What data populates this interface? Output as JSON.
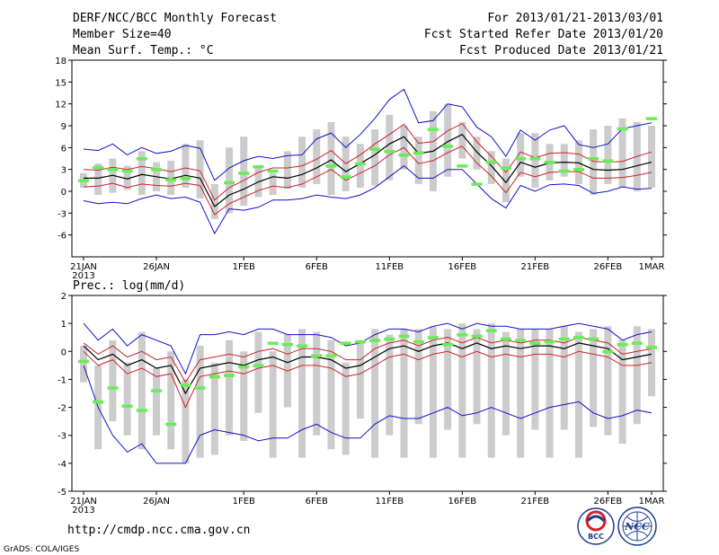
{
  "header": {
    "left": [
      "DERF/NCC/BCC Monthly Forecast",
      "Member Size=40",
      "Mean Surf. Temp.: °C"
    ],
    "right": [
      "For 2013/01/21-2013/03/01",
      "Fcst Started Refer Date 2013/01/20",
      "Fcst Produced Date 2013/01/21"
    ]
  },
  "precip_title": "Prec.: log(mm/d)",
  "footer": {
    "url": "http://cmdp.ncc.cma.gov.cn",
    "credit": "GrADS: COLA/IGES"
  },
  "logos": {
    "bcc": "BCC",
    "ncc": "NCC"
  },
  "colors": {
    "box": "#cccccc",
    "mean": "#000000",
    "band": "#d0202a",
    "range": "#1010cc",
    "obs": "#66ee55"
  },
  "x_labels": [
    {
      "day": 1,
      "label": "21JAN",
      "sub": "2013"
    },
    {
      "day": 6,
      "label": "26JAN"
    },
    {
      "day": 12,
      "label": "1FEB"
    },
    {
      "day": 17,
      "label": "6FEB"
    },
    {
      "day": 22,
      "label": "11FEB"
    },
    {
      "day": 27,
      "label": "16FEB"
    },
    {
      "day": 32,
      "label": "21FEB"
    },
    {
      "day": 37,
      "label": "26FEB"
    },
    {
      "day": 40,
      "label": "1MAR"
    }
  ],
  "chart_data": [
    {
      "type": "box",
      "title": "Mean Surf. Temp.: °C",
      "ylim": [
        -9,
        18
      ],
      "yticks": [
        -6,
        -3,
        0,
        3,
        6,
        9,
        12,
        15,
        18
      ],
      "days": 40,
      "mean": [
        1.8,
        1.8,
        2.2,
        1.7,
        2.3,
        2.0,
        1.7,
        2.2,
        1.8,
        -2.1,
        -0.5,
        0.3,
        1.3,
        2.0,
        1.8,
        2.3,
        3.2,
        4.3,
        2.7,
        3.8,
        5.0,
        6.5,
        7.5,
        5.2,
        5.5,
        6.8,
        7.8,
        5.4,
        3.5,
        1.2,
        4.0,
        3.3,
        3.9,
        4.0,
        3.9,
        3.0,
        2.9,
        3.0,
        3.5,
        4.0
      ],
      "upper": [
        3.0,
        2.9,
        3.3,
        3.0,
        3.4,
        3.1,
        2.7,
        3.2,
        2.8,
        -1.2,
        0.5,
        1.5,
        2.6,
        3.2,
        3.2,
        3.5,
        4.4,
        5.6,
        3.8,
        5.0,
        6.5,
        7.8,
        9.2,
        6.6,
        6.8,
        8.3,
        9.3,
        6.8,
        4.8,
        2.6,
        5.4,
        4.6,
        5.2,
        5.3,
        5.1,
        4.1,
        4.0,
        4.1,
        4.8,
        5.4
      ],
      "lower": [
        0.6,
        0.7,
        1.1,
        0.5,
        1.0,
        0.8,
        0.7,
        1.1,
        0.8,
        -3.2,
        -1.7,
        -0.8,
        0.1,
        0.7,
        0.5,
        1.0,
        2.0,
        3.0,
        1.5,
        2.5,
        3.5,
        5.0,
        6.0,
        3.8,
        4.2,
        5.3,
        6.2,
        3.9,
        2.1,
        -0.2,
        2.6,
        2.0,
        2.6,
        2.7,
        2.7,
        1.8,
        1.8,
        1.9,
        2.2,
        2.6
      ],
      "max": [
        5.8,
        5.6,
        6.5,
        5.0,
        6.0,
        5.2,
        5.5,
        6.3,
        5.9,
        1.5,
        3.2,
        4.2,
        4.8,
        4.5,
        4.9,
        5.0,
        7.2,
        8.0,
        6.0,
        7.8,
        10.0,
        12.6,
        14.0,
        9.4,
        9.7,
        12.0,
        11.6,
        8.8,
        7.5,
        4.8,
        8.4,
        7.0,
        8.4,
        9.0,
        6.4,
        6.0,
        6.5,
        8.6,
        9.0,
        9.4
      ],
      "min": [
        -1.3,
        -1.7,
        -1.5,
        -1.7,
        -1.0,
        -0.5,
        -1.0,
        -0.8,
        -1.5,
        -5.8,
        -2.4,
        -2.6,
        -2.2,
        -1.2,
        -1.2,
        -1.0,
        -0.5,
        -0.8,
        -1.0,
        -0.5,
        0.5,
        2.0,
        3.5,
        1.8,
        1.8,
        3.0,
        3.0,
        1.0,
        -1.0,
        -2.3,
        0.8,
        0.0,
        0.9,
        1.0,
        0.8,
        -0.3,
        0.0,
        0.6,
        0.3,
        0.4
      ],
      "box_lo": [
        0.5,
        -0.5,
        -0.2,
        0.2,
        -0.5,
        0.0,
        -0.5,
        0.5,
        -1.0,
        -3.8,
        -3.0,
        -2.0,
        -0.8,
        -0.5,
        0.3,
        0.5,
        1.0,
        -0.5,
        0.0,
        0.5,
        0.8,
        1.5,
        3.0,
        1.0,
        0.0,
        2.0,
        4.5,
        3.0,
        1.0,
        -1.5,
        2.0,
        0.5,
        1.5,
        2.0,
        1.0,
        -0.5,
        1.0,
        0.5,
        0.0,
        0.5
      ],
      "box_hi": [
        2.5,
        3.8,
        4.5,
        3.5,
        5.5,
        4.0,
        4.2,
        6.5,
        7.0,
        1.0,
        6.0,
        7.5,
        3.5,
        2.5,
        5.5,
        7.5,
        8.5,
        9.5,
        7.5,
        6.5,
        8.5,
        10.5,
        9.0,
        7.5,
        11.0,
        12.0,
        9.5,
        7.5,
        5.5,
        4.5,
        8.0,
        8.0,
        6.5,
        6.5,
        7.0,
        8.5,
        9.0,
        10.0,
        9.5,
        9.0
      ],
      "obs": [
        1.5,
        3.3,
        3.0,
        2.8,
        4.5,
        3.0,
        1.6,
        1.8,
        null,
        null,
        1.2,
        2.5,
        3.4,
        2.8,
        null,
        null,
        null,
        3.5,
        2.0,
        3.8,
        5.8,
        5.5,
        5.0,
        5.3,
        8.5,
        6.2,
        3.5,
        1.0,
        4.0,
        3.2,
        4.5,
        4.5,
        4.0,
        2.8,
        3.0,
        4.5,
        4.2,
        8.6,
        null,
        10.0
      ]
    },
    {
      "type": "box",
      "title": "Prec.: log(mm/d)",
      "ylim": [
        -5,
        2
      ],
      "yticks": [
        -5,
        -4,
        -3,
        -2,
        -1,
        0,
        1,
        2
      ],
      "days": 40,
      "mean": [
        0.2,
        -0.3,
        -0.1,
        -0.5,
        -0.3,
        -0.6,
        -0.5,
        -1.5,
        -0.6,
        -0.5,
        -0.4,
        -0.5,
        -0.3,
        -0.2,
        -0.4,
        -0.2,
        -0.2,
        -0.3,
        -0.6,
        -0.5,
        -0.2,
        0.1,
        0.2,
        0.0,
        0.2,
        0.3,
        0.1,
        0.3,
        0.1,
        0.2,
        0.1,
        0.2,
        0.2,
        0.1,
        0.3,
        0.2,
        0.1,
        -0.3,
        -0.2,
        -0.1
      ],
      "upper": [
        0.3,
        -0.1,
        0.2,
        -0.2,
        0.0,
        -0.3,
        -0.2,
        -1.1,
        -0.3,
        -0.2,
        -0.1,
        -0.2,
        0.0,
        0.1,
        -0.1,
        0.1,
        0.1,
        0.0,
        -0.3,
        -0.3,
        0.1,
        0.3,
        0.4,
        0.2,
        0.4,
        0.5,
        0.3,
        0.5,
        0.3,
        0.4,
        0.3,
        0.4,
        0.4,
        0.3,
        0.5,
        0.4,
        0.3,
        -0.1,
        0.0,
        0.1
      ],
      "lower": [
        0.0,
        -0.5,
        -0.3,
        -0.8,
        -0.6,
        -0.9,
        -0.8,
        -2.0,
        -0.9,
        -0.8,
        -0.7,
        -0.8,
        -0.6,
        -0.5,
        -0.7,
        -0.5,
        -0.5,
        -0.6,
        -0.9,
        -0.8,
        -0.5,
        -0.2,
        -0.1,
        -0.3,
        -0.1,
        0.0,
        -0.2,
        0.0,
        -0.2,
        -0.1,
        -0.2,
        -0.1,
        -0.1,
        -0.2,
        0.0,
        -0.1,
        -0.2,
        -0.5,
        -0.5,
        -0.4
      ],
      "max": [
        1.0,
        0.4,
        0.8,
        0.2,
        0.6,
        0.4,
        0.2,
        -0.8,
        0.6,
        0.6,
        0.7,
        0.6,
        0.8,
        0.8,
        0.6,
        0.6,
        0.6,
        0.5,
        0.2,
        0.3,
        0.6,
        0.8,
        0.8,
        0.7,
        0.9,
        1.0,
        0.8,
        1.0,
        0.9,
        0.9,
        0.8,
        0.8,
        0.8,
        0.9,
        1.0,
        0.9,
        0.8,
        0.4,
        0.6,
        0.7
      ],
      "min": [
        -0.5,
        -2.0,
        -3.0,
        -3.6,
        -3.3,
        -4.0,
        -4.0,
        -4.0,
        -3.0,
        -2.8,
        -2.9,
        -3.0,
        -3.2,
        -3.1,
        -3.1,
        -2.8,
        -2.6,
        -2.9,
        -3.1,
        -3.1,
        -2.6,
        -2.3,
        -2.4,
        -2.4,
        -2.2,
        -2.0,
        -2.3,
        -2.2,
        -2.0,
        -2.2,
        -2.4,
        -2.2,
        -2.0,
        -1.9,
        -1.8,
        -2.2,
        -2.4,
        -2.3,
        -2.1,
        -2.2
      ],
      "box_lo": [
        -1.1,
        -3.5,
        -2.5,
        -3.0,
        -3.5,
        -3.0,
        -3.5,
        -4.0,
        -3.8,
        -3.7,
        -3.0,
        -3.2,
        -2.2,
        -3.8,
        -2.0,
        -3.8,
        -3.0,
        -3.5,
        -3.7,
        -2.4,
        -3.8,
        -3.0,
        -3.8,
        -2.6,
        -3.8,
        -2.8,
        -3.8,
        -2.6,
        -3.8,
        -3.0,
        -3.8,
        -2.8,
        -3.8,
        -2.8,
        -3.8,
        -2.7,
        -3.0,
        -3.3,
        -2.6,
        -1.6
      ],
      "box_hi": [
        0.2,
        -0.5,
        0.4,
        -0.4,
        0.7,
        -0.6,
        0.0,
        -1.0,
        0.2,
        -0.4,
        0.4,
        0.0,
        0.7,
        0.0,
        0.6,
        0.8,
        0.7,
        0.4,
        -0.4,
        0.4,
        0.8,
        0.6,
        0.8,
        0.8,
        0.9,
        0.8,
        1.0,
        0.8,
        1.0,
        0.7,
        0.8,
        0.8,
        0.8,
        0.9,
        0.7,
        0.8,
        0.9,
        0.4,
        0.9,
        0.8
      ],
      "obs": [
        -0.35,
        -1.8,
        -1.3,
        -1.95,
        -2.1,
        -1.4,
        -2.6,
        -1.2,
        -1.3,
        -0.9,
        -0.85,
        -0.55,
        -0.5,
        0.3,
        0.25,
        0.2,
        -0.15,
        -0.15,
        0.3,
        0.35,
        0.4,
        0.45,
        0.55,
        0.35,
        0.5,
        0.25,
        0.6,
        0.55,
        0.75,
        0.45,
        0.4,
        0.3,
        0.35,
        0.45,
        0.5,
        0.45,
        0.0,
        0.25,
        0.3,
        0.15
      ]
    }
  ]
}
